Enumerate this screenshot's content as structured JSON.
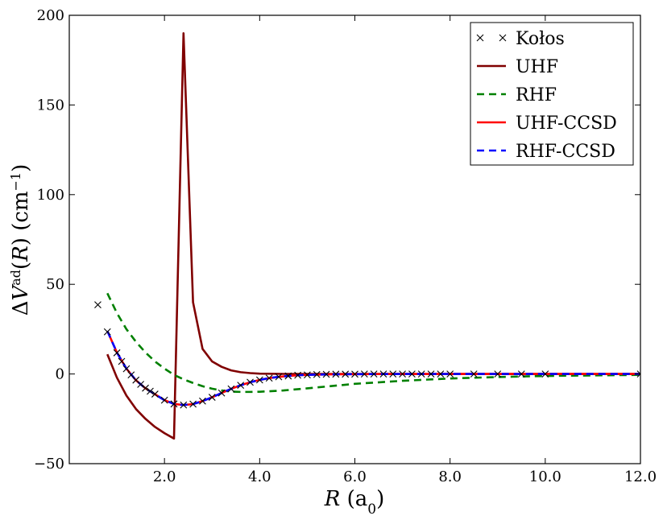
{
  "chart_data": {
    "type": "line",
    "title": "",
    "xlabel": {
      "italic": "R",
      "text": " (a",
      "sub": "0",
      "close": ")"
    },
    "ylabel": {
      "delta": "Δ",
      "italic_v": "V",
      "sup_ad": "ad",
      "open": "(",
      "italic_r": "R",
      "middle": ") (cm",
      "sup_exp": "−1",
      "close": ")"
    },
    "xlim": [
      0,
      12
    ],
    "ylim": [
      -50,
      200
    ],
    "x_ticks": [
      2,
      4,
      6,
      8,
      10,
      12
    ],
    "x_tick_labels": [
      "2.0",
      "4.0",
      "6.0",
      "8.0",
      "10.0",
      "12.0"
    ],
    "y_ticks": [
      -50,
      0,
      50,
      100,
      150,
      200
    ],
    "y_tick_labels": [
      "−50",
      "0",
      "50",
      "100",
      "150",
      "200"
    ],
    "grid": false,
    "legend_position": "top-right",
    "series": [
      {
        "name": "Kołos",
        "style": "marker-x",
        "color": "#000000",
        "x": [
          0.6,
          0.8,
          1.0,
          1.1,
          1.2,
          1.3,
          1.4,
          1.5,
          1.6,
          1.7,
          1.8,
          2.0,
          2.2,
          2.4,
          2.6,
          2.8,
          3.0,
          3.2,
          3.4,
          3.6,
          3.8,
          4.0,
          4.2,
          4.4,
          4.6,
          4.8,
          5.0,
          5.2,
          5.4,
          5.6,
          5.8,
          6.0,
          6.2,
          6.4,
          6.6,
          6.8,
          7.0,
          7.2,
          7.4,
          7.6,
          7.8,
          8.0,
          8.5,
          9.0,
          9.5,
          10.0,
          12.0
        ],
        "y": [
          38.6,
          23.5,
          11.8,
          7.0,
          2.9,
          -0.5,
          -3.4,
          -5.8,
          -7.9,
          -9.6,
          -11.2,
          -14.6,
          -16.7,
          -17.3,
          -16.8,
          -15.1,
          -13.0,
          -10.6,
          -8.3,
          -6.3,
          -4.6,
          -3.3,
          -2.3,
          -1.6,
          -1.1,
          -0.7,
          -0.5,
          -0.3,
          -0.2,
          -0.1,
          -0.1,
          -0.1,
          0,
          0,
          0,
          0,
          0,
          0,
          0,
          0,
          0,
          0,
          0,
          0,
          0,
          0,
          0
        ]
      },
      {
        "name": "UHF",
        "style": "solid",
        "color": "#800000",
        "x": [
          0.8,
          1.0,
          1.2,
          1.4,
          1.6,
          1.8,
          2.0,
          2.2,
          2.4,
          2.6,
          2.8,
          3.0,
          3.2,
          3.4,
          3.6,
          3.8,
          4.0,
          4.5,
          5.0,
          6.0,
          8.0,
          10.0,
          12.0
        ],
        "y": [
          11,
          -2,
          -12,
          -19.5,
          -25,
          -29.5,
          -33,
          -36,
          190,
          40,
          14,
          7,
          4,
          2,
          1,
          0.5,
          0.2,
          0.05,
          0,
          0,
          0,
          0,
          0
        ]
      },
      {
        "name": "RHF",
        "style": "dashed",
        "color": "#008000",
        "x": [
          0.8,
          1.0,
          1.2,
          1.4,
          1.6,
          1.8,
          2.0,
          2.2,
          2.4,
          2.6,
          2.8,
          3.0,
          3.2,
          3.4,
          3.6,
          3.8,
          4.0,
          4.5,
          5.0,
          6.0,
          7.0,
          8.0,
          9.0,
          10.0,
          12.0
        ],
        "y": [
          45,
          34,
          25,
          18,
          12,
          7,
          3,
          -0.5,
          -3,
          -5,
          -6.8,
          -8.2,
          -9.2,
          -9.8,
          -10,
          -10,
          -9.9,
          -9.2,
          -8,
          -5.5,
          -3.8,
          -2.5,
          -1.7,
          -1.1,
          -0.5
        ]
      },
      {
        "name": "UHF-CCSD",
        "style": "solid",
        "color": "#ff0000",
        "x": [
          0.8,
          1.0,
          1.2,
          1.4,
          1.6,
          1.8,
          2.0,
          2.2,
          2.4,
          2.6,
          2.8,
          3.0,
          3.2,
          3.4,
          3.6,
          3.8,
          4.0,
          4.2,
          4.4,
          4.6,
          4.8,
          5.0,
          5.5,
          6.0,
          7.0,
          8.0,
          10.0,
          12.0
        ],
        "y": [
          24,
          12,
          3,
          -3.5,
          -8,
          -11.3,
          -14.6,
          -16.7,
          -17.3,
          -16.8,
          -15.1,
          -13.0,
          -10.6,
          -8.3,
          -6.3,
          -4.6,
          -3.3,
          -2.3,
          -1.6,
          -1.1,
          -0.7,
          -0.5,
          -0.2,
          -0.1,
          0,
          0,
          0,
          0
        ]
      },
      {
        "name": "RHF-CCSD",
        "style": "dashed",
        "color": "#0000ff",
        "x": [
          0.8,
          1.0,
          1.2,
          1.4,
          1.6,
          1.8,
          2.0,
          2.2,
          2.4,
          2.6,
          2.8,
          3.0,
          3.2,
          3.4,
          3.6,
          3.8,
          4.0,
          4.2,
          4.4,
          4.6,
          4.8,
          5.0,
          5.5,
          6.0,
          7.0,
          8.0,
          10.0,
          12.0
        ],
        "y": [
          24,
          12,
          3,
          -3.5,
          -8,
          -11.3,
          -14.6,
          -16.7,
          -17.3,
          -16.8,
          -15.1,
          -13.0,
          -10.6,
          -8.3,
          -6.3,
          -4.6,
          -3.3,
          -2.3,
          -1.6,
          -1.1,
          -0.7,
          -0.5,
          -0.2,
          -0.1,
          0,
          0,
          0,
          0
        ]
      }
    ]
  }
}
